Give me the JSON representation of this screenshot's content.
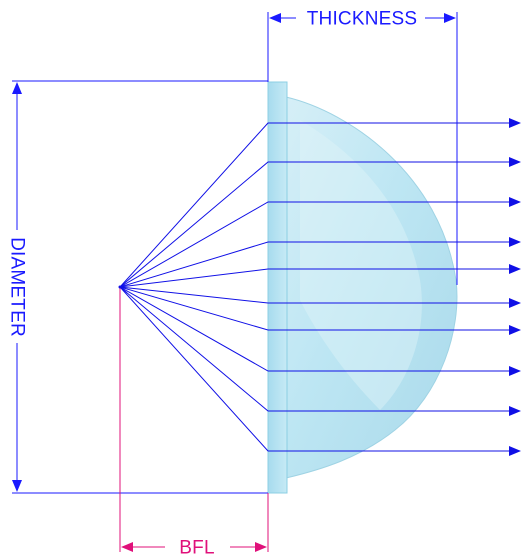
{
  "diagram": {
    "labels": {
      "thickness": "THICKNESS",
      "diameter": "DIAMETER",
      "bfl": "BFL"
    },
    "colors": {
      "dimension_blue": "#1a1aff",
      "ray_blue": "#1010e6",
      "bfl_magenta": "#e0107a",
      "lens_fill": "#bfe6f2",
      "lens_edge": "#8ccfe3",
      "background": "#ffffff"
    },
    "ray_count": 10
  }
}
